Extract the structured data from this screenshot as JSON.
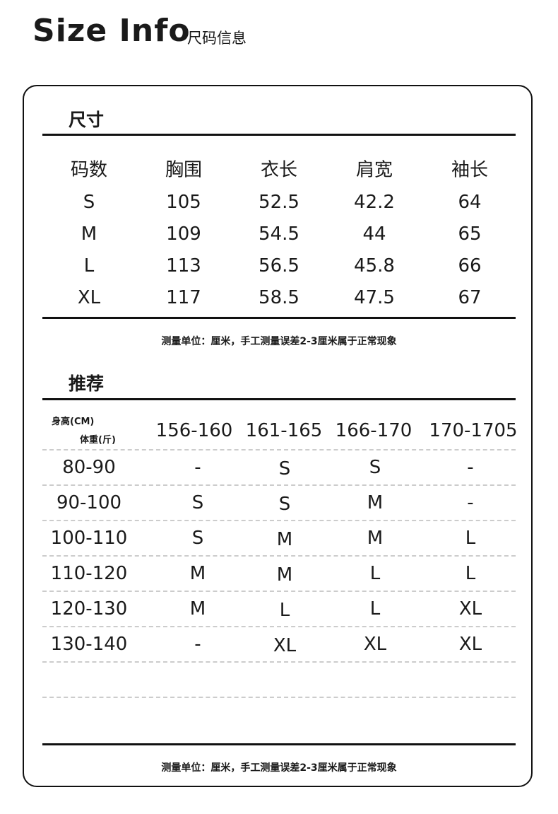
{
  "header": {
    "title": "Size Info",
    "subtitle": "尺码信息"
  },
  "size_table": {
    "section_title": "尺寸",
    "columns": [
      "码数",
      "胸围",
      "衣长",
      "肩宽",
      "袖长"
    ],
    "rows": [
      [
        "S",
        "105",
        "52.5",
        "42.2",
        "64"
      ],
      [
        "M",
        "109",
        "54.5",
        "44",
        "65"
      ],
      [
        "L",
        "113",
        "56.5",
        "45.8",
        "66"
      ],
      [
        "XL",
        "117",
        "58.5",
        "47.5",
        "67"
      ]
    ],
    "note": "测量单位：厘米，手工测量误差2-3厘米属于正常现象"
  },
  "recommend_table": {
    "section_title": "推荐",
    "corner_top": "身高(CM)",
    "corner_bottom": "体重(斤)",
    "columns": [
      "156-160",
      "161-165",
      "166-170",
      "170-1705"
    ],
    "rows": [
      [
        "80-90",
        "-",
        "S",
        "S",
        "-"
      ],
      [
        "90-100",
        "S",
        "S",
        "M",
        "-"
      ],
      [
        "100-110",
        "S",
        "M",
        "M",
        "L"
      ],
      [
        "110-120",
        "M",
        "M",
        "L",
        "L"
      ],
      [
        "120-130",
        "M",
        "L",
        "L",
        "XL"
      ],
      [
        "130-140",
        "-",
        "XL",
        "XL",
        "XL"
      ]
    ],
    "note": "测量单位：厘米，手工测量误差2-3厘米属于正常现象"
  }
}
